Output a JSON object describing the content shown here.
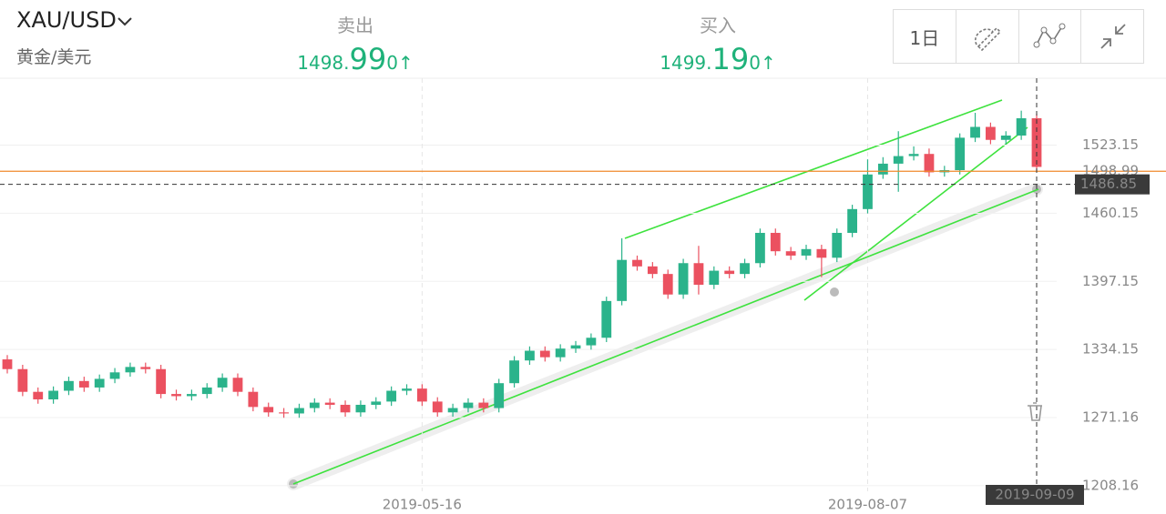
{
  "header": {
    "symbol": "XAU/USD",
    "name": "黄金/美元",
    "sell": {
      "label": "卖出",
      "int": "1498.",
      "big": "99",
      "small": "0",
      "arrow": "↑"
    },
    "buy": {
      "label": "买入",
      "int": "1499.",
      "big": "19",
      "small": "0",
      "arrow": "↑"
    },
    "period": "1日"
  },
  "chart_data": {
    "type": "candlestick",
    "categories": [
      null,
      null,
      null,
      null,
      null,
      null,
      null,
      null,
      null,
      null,
      null,
      null,
      null,
      null,
      null,
      null,
      null,
      null,
      null,
      null,
      null,
      null,
      null,
      null,
      null,
      null,
      null,
      "2019-05-16",
      null,
      null,
      null,
      null,
      null,
      null,
      null,
      null,
      null,
      null,
      null,
      null,
      null,
      null,
      null,
      null,
      null,
      null,
      null,
      null,
      null,
      null,
      null,
      null,
      null,
      null,
      null,
      null,
      "2019-08-07",
      null,
      null,
      null,
      null,
      null,
      null,
      null,
      null,
      null,
      null,
      "2019-09-09"
    ],
    "open": [
      1325,
      1316,
      1295,
      1288,
      1296,
      1305,
      1299,
      1307,
      1313,
      1318,
      1316,
      1293,
      1291,
      1293,
      1299,
      1308,
      1295,
      1281,
      1276,
      1275,
      1280,
      1285,
      1283,
      1276,
      1283,
      1286,
      1296,
      1298,
      1286,
      1276,
      1280,
      1285,
      1280,
      1303,
      1324,
      1333,
      1327,
      1335,
      1338,
      1345,
      1379,
      1417,
      1411,
      1404,
      1385,
      1414,
      1394,
      1407,
      1404,
      1414,
      1442,
      1425,
      1421,
      1427,
      1419,
      1442,
      1464,
      1496,
      1506,
      1513,
      1515,
      1498,
      1500,
      1530,
      1540,
      1528,
      1532,
      1548
    ],
    "high": [
      1329,
      1320,
      1299,
      1300,
      1309,
      1309,
      1311,
      1317,
      1322,
      1322,
      1320,
      1297,
      1297,
      1303,
      1312,
      1312,
      1299,
      1285,
      1280,
      1284,
      1289,
      1289,
      1287,
      1287,
      1290,
      1300,
      1302,
      1302,
      1290,
      1284,
      1289,
      1289,
      1307,
      1328,
      1337,
      1337,
      1339,
      1342,
      1349,
      1383,
      1437,
      1421,
      1415,
      1408,
      1418,
      1430,
      1411,
      1411,
      1418,
      1446,
      1446,
      1429,
      1431,
      1431,
      1446,
      1468,
      1510,
      1512,
      1536,
      1522,
      1520,
      1504,
      1534,
      1553,
      1544,
      1536,
      1555,
      1552
    ],
    "low": [
      1312,
      1291,
      1284,
      1284,
      1292,
      1295,
      1295,
      1303,
      1309,
      1312,
      1289,
      1287,
      1287,
      1289,
      1295,
      1291,
      1277,
      1272,
      1271,
      1271,
      1276,
      1279,
      1272,
      1272,
      1279,
      1282,
      1292,
      1282,
      1272,
      1272,
      1276,
      1276,
      1276,
      1299,
      1320,
      1323,
      1323,
      1331,
      1334,
      1341,
      1375,
      1407,
      1400,
      1381,
      1381,
      1385,
      1390,
      1400,
      1400,
      1410,
      1421,
      1417,
      1417,
      1401,
      1415,
      1438,
      1460,
      1492,
      1480,
      1509,
      1494,
      1494,
      1496,
      1526,
      1524,
      1524,
      1528,
      1499
    ],
    "close": [
      1316,
      1295,
      1288,
      1296,
      1305,
      1299,
      1307,
      1313,
      1318,
      1316,
      1293,
      1291,
      1293,
      1299,
      1308,
      1295,
      1281,
      1276,
      1275,
      1280,
      1285,
      1283,
      1276,
      1283,
      1286,
      1296,
      1298,
      1286,
      1276,
      1280,
      1285,
      1280,
      1303,
      1324,
      1333,
      1327,
      1335,
      1338,
      1345,
      1379,
      1417,
      1411,
      1404,
      1385,
      1414,
      1394,
      1407,
      1404,
      1414,
      1442,
      1425,
      1421,
      1427,
      1419,
      1442,
      1464,
      1496,
      1506,
      1513,
      1515,
      1498,
      1500,
      1530,
      1540,
      1528,
      1532,
      1548,
      1503
    ],
    "up_color": "#2bb38b",
    "down_color": "#eb5160",
    "ylim": [
      1198,
      1585
    ],
    "yticks": [
      1208.16,
      1271.16,
      1334.15,
      1397.15,
      1460.15,
      1523.15
    ],
    "grid": true,
    "price_line": {
      "value": 1498.99,
      "color": "#f08a2c"
    },
    "crosshair": {
      "value": 1486.85
    }
  }
}
